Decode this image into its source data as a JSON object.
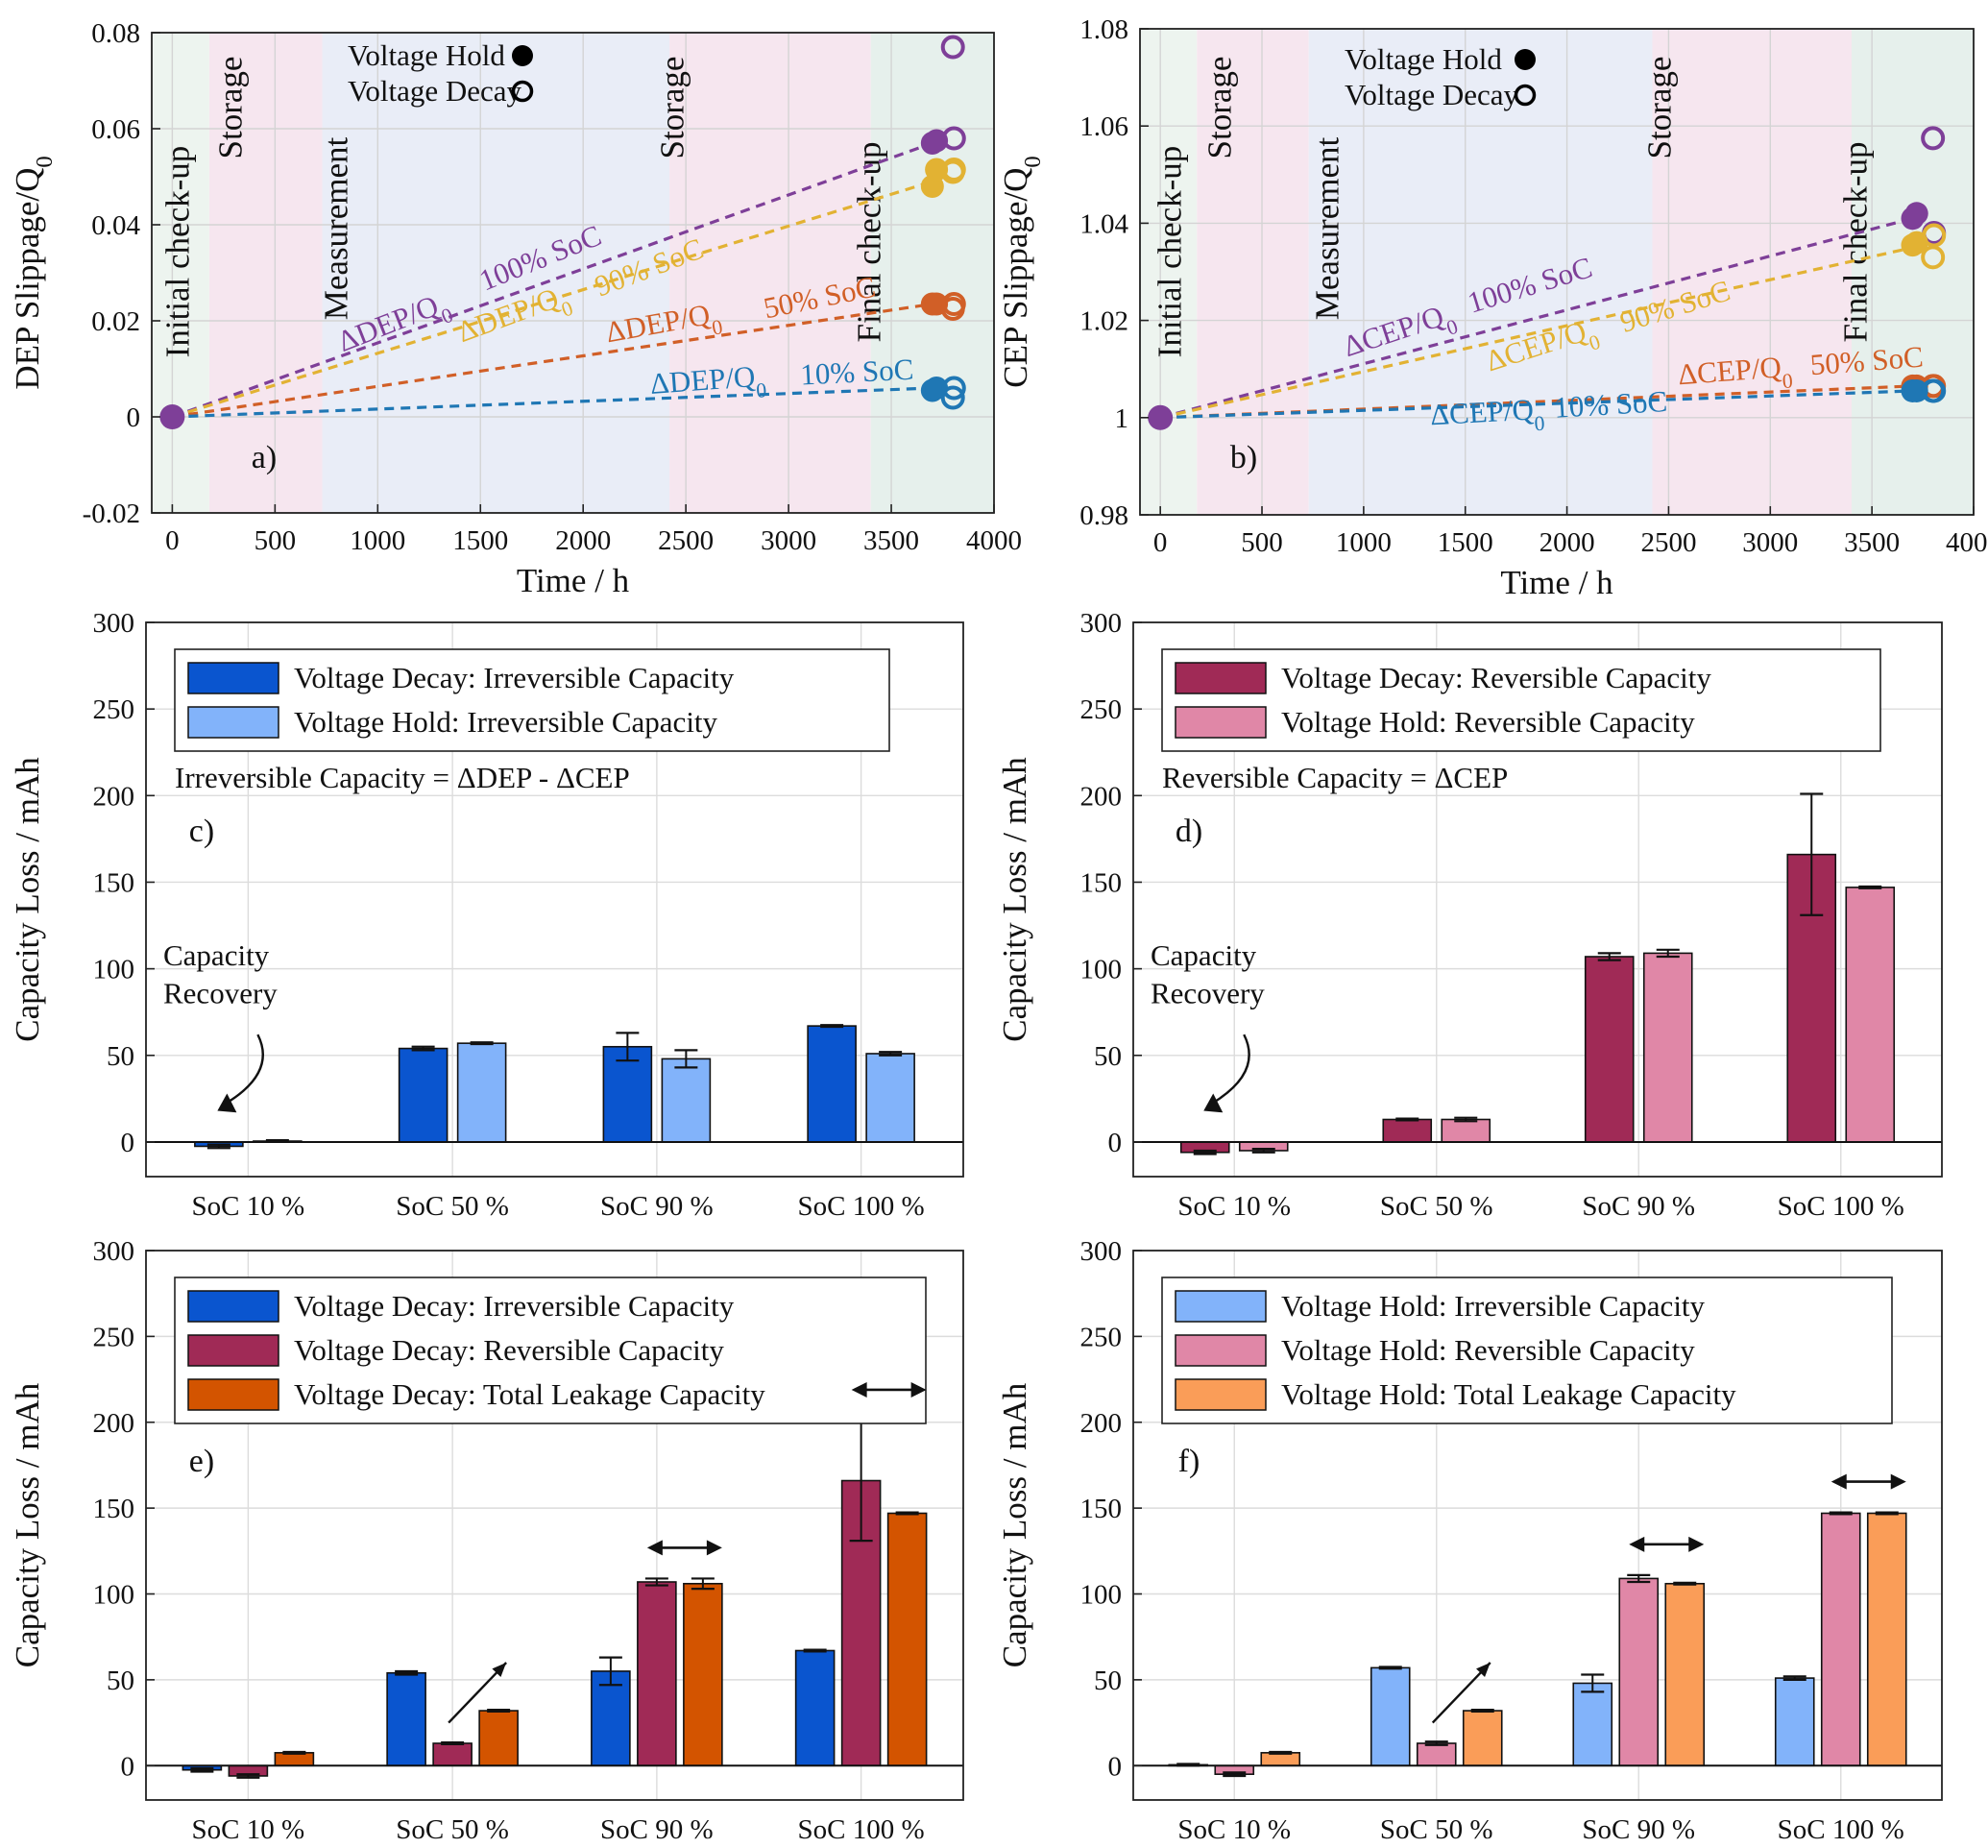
{
  "chart_data": [
    {
      "id": "a",
      "type": "scatter",
      "panel_label": "a)",
      "xlabel": "Time / h",
      "ylabel": "DEP Slippage/Q",
      "ylabel_sub": "0",
      "xlim": [
        -100,
        4000
      ],
      "ylim": [
        -0.02,
        0.08
      ],
      "xticks": [
        0,
        500,
        1000,
        1500,
        2000,
        2500,
        3000,
        3500,
        4000
      ],
      "xtick_labels": [
        "0",
        "500",
        "1000",
        "1500",
        "2000",
        "2500",
        "3000",
        "3500",
        "4000"
      ],
      "yticks": [
        -0.02,
        0,
        0.02,
        0.04,
        0.06,
        0.08
      ],
      "ytick_labels": [
        "-0.02",
        "0",
        "0.02",
        "0.04",
        "0.06",
        "0.08"
      ],
      "phases": [
        {
          "label": "Initial check-up",
          "x0": -100,
          "x1": 180,
          "color": "#edf4ef"
        },
        {
          "label": "Storage",
          "x0": 180,
          "x1": 730,
          "color": "#f6e6ef"
        },
        {
          "label": "Measurement",
          "x0": 730,
          "x1": 2420,
          "color": "#e9edf7"
        },
        {
          "label": "Storage",
          "x0": 2420,
          "x1": 3400,
          "color": "#f6e6ef"
        },
        {
          "label": "Final check-up",
          "x0": 3400,
          "x1": 4000,
          "color": "#e6f0ec"
        }
      ],
      "legend": [
        {
          "label": "Voltage Hold",
          "marker": "filled"
        },
        {
          "label": "Voltage Decay",
          "marker": "open"
        }
      ],
      "series": [
        {
          "name": "100% SoC",
          "color": "#7e3f98",
          "start": [
            0,
            0
          ],
          "end": [
            3700,
            0.057
          ],
          "hold": [
            0.057,
            0.0575
          ],
          "decay": [
            0.077,
            0.058
          ],
          "line_label": "ΔDEP/Q",
          "line_label_sub": "0",
          "lx1": 830,
          "ly1": 0.0135,
          "lx2": 1480,
          "ly2": 0.0245,
          "soc": "100% SoC",
          "sx1": 1520,
          "sy1": 0.0262,
          "sx2": 2000,
          "sy2": 0.0345
        },
        {
          "name": "90% SoC",
          "color": "#e2b233",
          "start": [
            0,
            0
          ],
          "end": [
            3700,
            0.049
          ],
          "hold": [
            0.048,
            0.0515
          ],
          "decay": [
            0.051,
            0.0515
          ],
          "line_label": "ΔDEP/Q",
          "line_label_sub": "0",
          "lx1": 1410,
          "ly1": 0.0155,
          "lx2": 1920,
          "ly2": 0.0235,
          "soc": "90% SoC",
          "sx1": 2080,
          "sy1": 0.025,
          "sx2": 2600,
          "sy2": 0.0335
        },
        {
          "name": "50% SoC",
          "color": "#d15f27",
          "start": [
            0,
            0
          ],
          "end": [
            3700,
            0.0235
          ],
          "hold": [
            0.0235,
            0.0235
          ],
          "decay": [
            0.0225,
            0.0235
          ],
          "line_label": "ΔDEP/Q",
          "line_label_sub": "0",
          "lx1": 2120,
          "ly1": 0.0155,
          "lx2": 2700,
          "ly2": 0.02,
          "soc": "50% SoC",
          "sx1": 2890,
          "sy1": 0.0205,
          "sx2": 3350,
          "sy2": 0.0245
        },
        {
          "name": "10% SoC",
          "color": "#1f77b4",
          "start": [
            0,
            0
          ],
          "end": [
            3700,
            0.006
          ],
          "hold": [
            0.0055,
            0.006
          ],
          "decay": [
            0.004,
            0.006
          ],
          "line_label": "ΔDEP/Q",
          "line_label_sub": "0",
          "lx1": 2330,
          "ly1": 0.0048,
          "lx2": 2870,
          "ly2": 0.0065,
          "soc": "10% SoC",
          "sx1": 3060,
          "sy1": 0.0067,
          "sx2": 3570,
          "sy2": 0.0078
        }
      ]
    },
    {
      "id": "b",
      "type": "scatter",
      "panel_label": "b)",
      "xlabel": "Time / h",
      "ylabel": "CEP Slippage/Q",
      "ylabel_sub": "0",
      "xlim": [
        -100,
        4000
      ],
      "ylim": [
        0.98,
        1.08
      ],
      "xticks": [
        0,
        500,
        1000,
        1500,
        2000,
        2500,
        3000,
        3500,
        4000
      ],
      "xtick_labels": [
        "0",
        "500",
        "1000",
        "1500",
        "2000",
        "2500",
        "3000",
        "3500",
        "4000"
      ],
      "yticks": [
        0.98,
        1.0,
        1.02,
        1.04,
        1.06,
        1.08
      ],
      "ytick_labels": [
        "0.98",
        "1",
        "1.02",
        "1.04",
        "1.06",
        "1.08"
      ],
      "phases": [
        {
          "label": "Initial check-up",
          "x0": -100,
          "x1": 180,
          "color": "#edf4ef"
        },
        {
          "label": "Storage",
          "x0": 180,
          "x1": 730,
          "color": "#f6e6ef"
        },
        {
          "label": "Measurement",
          "x0": 730,
          "x1": 2420,
          "color": "#e9edf7"
        },
        {
          "label": "Storage",
          "x0": 2420,
          "x1": 3400,
          "color": "#f6e6ef"
        },
        {
          "label": "Final check-up",
          "x0": 3400,
          "x1": 4000,
          "color": "#e6f0ec"
        }
      ],
      "legend": [
        {
          "label": "Voltage Hold",
          "marker": "filled"
        },
        {
          "label": "Voltage Decay",
          "marker": "open"
        }
      ],
      "series": [
        {
          "name": "100% SoC",
          "color": "#7e3f98",
          "start": [
            0,
            1.0
          ],
          "end": [
            3700,
            1.041
          ],
          "hold": [
            1.041,
            1.042
          ],
          "decay": [
            1.0575,
            1.038
          ],
          "line_label": "ΔCEP/Q",
          "line_label_sub": "0",
          "lx1": 920,
          "ly1": 1.0125,
          "lx2": 1500,
          "ly2": 1.0205,
          "soc": "100% SoC",
          "sx1": 1530,
          "sy1": 1.0215,
          "sx2": 2080,
          "sy2": 1.0285
        },
        {
          "name": "90% SoC",
          "color": "#e2b233",
          "start": [
            0,
            1.0
          ],
          "end": [
            3700,
            1.035
          ],
          "hold": [
            1.0355,
            1.036
          ],
          "decay": [
            1.033,
            1.0375
          ],
          "line_label": "ΔCEP/Q",
          "line_label_sub": "0",
          "lx1": 1620,
          "ly1": 1.0095,
          "lx2": 2140,
          "ly2": 1.0165,
          "soc": "90% SoC",
          "sx1": 2280,
          "sy1": 1.0175,
          "sx2": 2780,
          "sy2": 1.024
        },
        {
          "name": "50% SoC",
          "color": "#d15f27",
          "start": [
            0,
            1.0
          ],
          "end": [
            3700,
            1.0065
          ],
          "hold": [
            1.0065,
            1.0065
          ],
          "decay": [
            1.0065,
            1.0065
          ],
          "line_label": "ΔCEP/Q",
          "line_label_sub": "0",
          "lx1": 2550,
          "ly1": 1.0068,
          "lx2": 3080,
          "ly2": 1.0085,
          "soc": "50% SoC",
          "sx1": 3200,
          "sy1": 1.0088,
          "sx2": 3680,
          "sy2": 1.0103
        },
        {
          "name": "10% SoC",
          "color": "#1f77b4",
          "start": [
            0,
            1.0
          ],
          "end": [
            3700,
            1.0055
          ],
          "hold": [
            1.0055,
            1.0055
          ],
          "decay": [
            1.0055,
            1.0055
          ],
          "line_label": "ΔCEP/Q",
          "line_label_sub": "0",
          "lx1": 1330,
          "ly1": 0.9985,
          "lx2": 1880,
          "ly2": 0.9998,
          "soc": "10% SoC",
          "sx1": 1940,
          "sy1": 1.0,
          "sx2": 2470,
          "sy2": 1.0013
        }
      ]
    },
    {
      "id": "c",
      "type": "bar",
      "panel_label": "c)",
      "xlabel": "",
      "ylabel": "Capacity Loss / mAh",
      "ylim": [
        -20,
        300
      ],
      "yticks": [
        0,
        50,
        100,
        150,
        200,
        250,
        300
      ],
      "ytick_labels": [
        "0",
        "50",
        "100",
        "150",
        "200",
        "250",
        "300"
      ],
      "categories": [
        "SoC 10 %",
        "SoC 50 %",
        "SoC 90 %",
        "SoC 100 %"
      ],
      "series": [
        {
          "name": "Voltage Decay: Irreversible Capacity",
          "color": "#0a55cf",
          "values": [
            -2.5,
            54,
            55,
            67
          ],
          "err": [
            1,
            1,
            8,
            0.5
          ]
        },
        {
          "name": "Voltage Hold: Irreversible Capacity",
          "color": "#82b3fa",
          "values": [
            0.5,
            57,
            48,
            51
          ],
          "err": [
            0.5,
            0.5,
            5,
            1
          ]
        }
      ],
      "annotation": "Irreversible Capacity = ΔDEP - ΔCEP",
      "recovery_label": [
        "Capacity",
        "Recovery"
      ]
    },
    {
      "id": "d",
      "type": "bar",
      "panel_label": "d)",
      "xlabel": "",
      "ylabel": "Capacity Loss / mAh",
      "ylim": [
        -20,
        300
      ],
      "yticks": [
        0,
        50,
        100,
        150,
        200,
        250,
        300
      ],
      "ytick_labels": [
        "0",
        "50",
        "100",
        "150",
        "200",
        "250",
        "300"
      ],
      "categories": [
        "SoC 10 %",
        "SoC 50 %",
        "SoC 90 %",
        "SoC 100 %"
      ],
      "series": [
        {
          "name": "Voltage Decay: Reversible Capacity",
          "color": "#a02a56",
          "values": [
            -6,
            13,
            107,
            166
          ],
          "err": [
            1,
            0.5,
            2,
            35
          ]
        },
        {
          "name": "Voltage Hold: Reversible Capacity",
          "color": "#e087a7",
          "values": [
            -5,
            13,
            109,
            147
          ],
          "err": [
            1,
            1,
            2,
            0.5
          ]
        }
      ],
      "annotation": "Reversible Capacity = ΔCEP",
      "recovery_label": [
        "Capacity",
        "Recovery"
      ]
    },
    {
      "id": "e",
      "type": "bar",
      "panel_label": "e)",
      "xlabel": "",
      "ylabel": "Capacity Loss / mAh",
      "ylim": [
        -20,
        300
      ],
      "yticks": [
        0,
        50,
        100,
        150,
        200,
        250,
        300
      ],
      "ytick_labels": [
        "0",
        "50",
        "100",
        "150",
        "200",
        "250",
        "300"
      ],
      "categories": [
        "SoC 10 %",
        "SoC 50 %",
        "SoC 90 %",
        "SoC 100 %"
      ],
      "series": [
        {
          "name": "Voltage Decay: Irreversible Capacity",
          "color": "#0a55cf",
          "values": [
            -2.5,
            54,
            55,
            67
          ],
          "err": [
            1,
            1,
            8,
            0.5
          ]
        },
        {
          "name": "Voltage Decay: Reversible Capacity",
          "color": "#a02a56",
          "values": [
            -6,
            13,
            107,
            166
          ],
          "err": [
            1,
            0.5,
            2,
            35
          ]
        },
        {
          "name": "Voltage Decay: Total Leakage Capacity",
          "color": "#d35400",
          "values": [
            7.5,
            32,
            106,
            147
          ],
          "err": [
            0.5,
            0.5,
            3,
            0.5
          ]
        }
      ]
    },
    {
      "id": "f",
      "type": "bar",
      "panel_label": "f)",
      "xlabel": "",
      "ylabel": "Capacity Loss / mAh",
      "ylim": [
        -20,
        300
      ],
      "yticks": [
        0,
        50,
        100,
        150,
        200,
        250,
        300
      ],
      "ytick_labels": [
        "0",
        "50",
        "100",
        "150",
        "200",
        "250",
        "300"
      ],
      "categories": [
        "SoC 10 %",
        "SoC 50 %",
        "SoC 90 %",
        "SoC 100 %"
      ],
      "series": [
        {
          "name": "Voltage Hold: Irreversible Capacity",
          "color": "#82b3fa",
          "values": [
            0.5,
            57,
            48,
            51
          ],
          "err": [
            0.5,
            0.5,
            5,
            1
          ]
        },
        {
          "name": "Voltage Hold: Reversible Capacity",
          "color": "#e087a7",
          "values": [
            -5,
            13,
            109,
            147
          ],
          "err": [
            1,
            1,
            2,
            0.5
          ]
        },
        {
          "name": "Voltage Hold: Total Leakage Capacity",
          "color": "#fa9d58",
          "values": [
            7.5,
            32,
            106,
            147
          ],
          "err": [
            0.5,
            0.5,
            0.5,
            0.5
          ]
        }
      ]
    }
  ]
}
